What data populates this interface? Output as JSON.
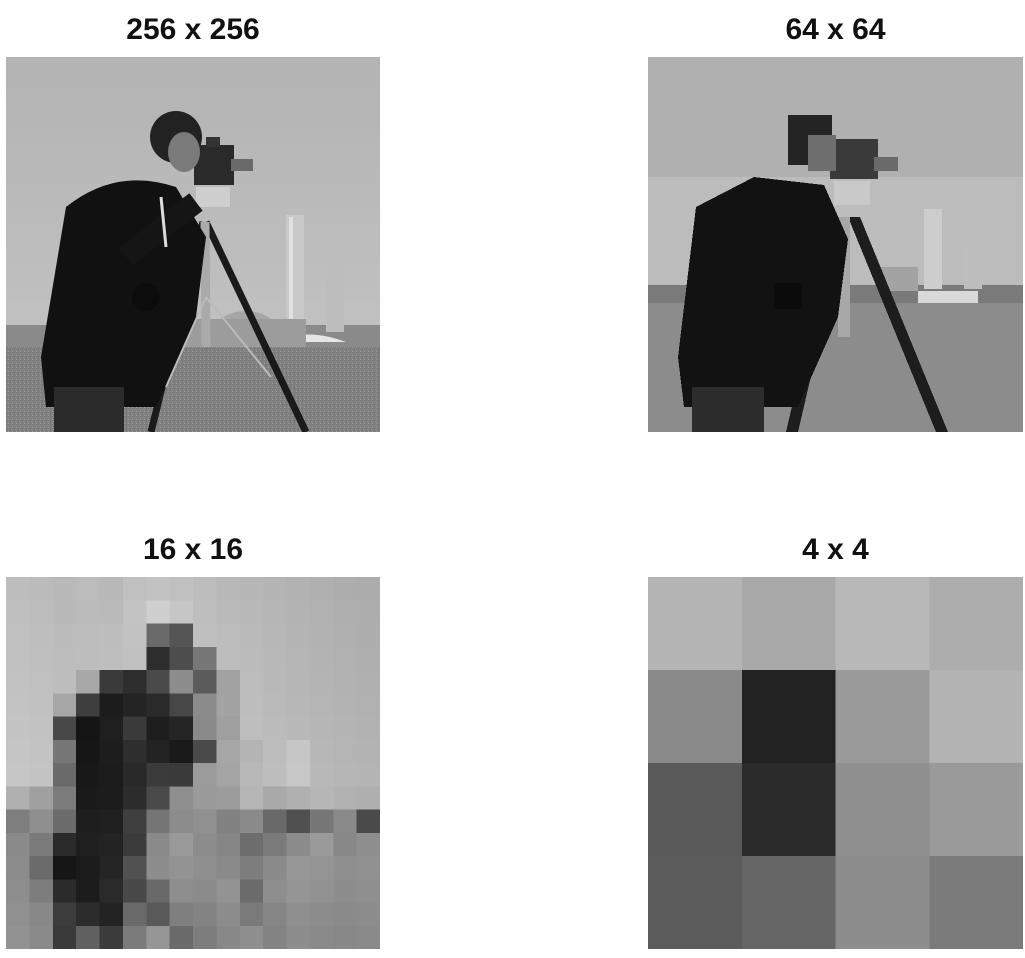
{
  "panels": [
    {
      "id": "256",
      "title": "256 x 256",
      "resolution": 256
    },
    {
      "id": "64",
      "title": "64 x 64",
      "resolution": 64
    },
    {
      "id": "16",
      "title": "16 x 16",
      "resolution": 16
    },
    {
      "id": "4",
      "title": "4 x 4",
      "resolution": 4
    }
  ],
  "image_subject": "cameraman",
  "grid_4x4": [
    [
      "#b4b4b4",
      "#a9a9a9",
      "#b8b8b8",
      "#adadad"
    ],
    [
      "#8a8a8a",
      "#222222",
      "#9a9a9a",
      "#b3b3b3"
    ],
    [
      "#595959",
      "#2b2b2b",
      "#8f8f8f",
      "#9a9a9a"
    ],
    [
      "#5c5c5c",
      "#666666",
      "#8d8d8d",
      "#7a7a7a"
    ]
  ],
  "grid_16x16": [
    [
      "#bdbdbd",
      "#bbbbbb",
      "#b9b9b9",
      "#bcbcbc",
      "#b8b8b8",
      "#c0c0c0",
      "#c2c2c2",
      "#c0c0c0",
      "#bcbcbc",
      "#b8b8b8",
      "#b6b6b6",
      "#b4b4b4",
      "#b2b2b2",
      "#b0b0b0",
      "#aeaeae",
      "#acacac"
    ],
    [
      "#bfbfbf",
      "#bcbcbc",
      "#b9b9b9",
      "#bbbbbb",
      "#bababa",
      "#c3c3c3",
      "#cfcfcf",
      "#c6c6c6",
      "#bebebe",
      "#bababa",
      "#b8b8b8",
      "#b5b5b5",
      "#b3b3b3",
      "#b1b1b1",
      "#afafaf",
      "#adadad"
    ],
    [
      "#c0c0c0",
      "#bebebe",
      "#bbbbbb",
      "#bcbcbc",
      "#bdbdbd",
      "#c2c2c2",
      "#6a6a6a",
      "#555555",
      "#bfbfbf",
      "#bcbcbc",
      "#bababa",
      "#b7b7b7",
      "#b4b4b4",
      "#b2b2b2",
      "#b0b0b0",
      "#aeaeae"
    ],
    [
      "#c1c1c1",
      "#bfbfbf",
      "#bcbcbc",
      "#bdbdbd",
      "#bebebe",
      "#c0c0c0",
      "#2d2d2d",
      "#4d4d4d",
      "#777777",
      "#bdbdbd",
      "#bbbbbb",
      "#b8b8b8",
      "#b5b5b5",
      "#b3b3b3",
      "#b1b1b1",
      "#afafaf"
    ],
    [
      "#c2c2c2",
      "#c0c0c0",
      "#bdbdbd",
      "#a8a8a8",
      "#3a3a3a",
      "#2e2e2e",
      "#4a4a4a",
      "#8d8d8d",
      "#5b5b5b",
      "#a2a2a2",
      "#bcbcbc",
      "#b9b9b9",
      "#b6b6b6",
      "#b4b4b4",
      "#b2b2b2",
      "#b0b0b0"
    ],
    [
      "#c3c3c3",
      "#c1c1c1",
      "#a6a6a6",
      "#3e3e3e",
      "#1c1c1c",
      "#242424",
      "#2a2a2a",
      "#474747",
      "#8b8b8b",
      "#a3a3a3",
      "#bdbdbd",
      "#bababa",
      "#b7b7b7",
      "#b5b5b5",
      "#b3b3b3",
      "#b1b1b1"
    ],
    [
      "#c4c4c4",
      "#c2c2c2",
      "#484848",
      "#151515",
      "#1f1f1f",
      "#3a3a3a",
      "#1e1e1e",
      "#252525",
      "#8a8a8a",
      "#9f9f9f",
      "#bebebe",
      "#bbbbbb",
      "#b8b8b8",
      "#b6b6b6",
      "#b4b4b4",
      "#b2b2b2"
    ],
    [
      "#c5c5c5",
      "#c3c3c3",
      "#777777",
      "#161616",
      "#1d1d1d",
      "#2e2e2e",
      "#232323",
      "#1a1a1a",
      "#4a4a4a",
      "#a7a7a7",
      "#b4b4b4",
      "#bcbcbc",
      "#c6c6c6",
      "#b7b7b7",
      "#b5b5b5",
      "#b3b3b3"
    ],
    [
      "#c6c6c6",
      "#c4c4c4",
      "#6a6a6a",
      "#181818",
      "#1b1b1b",
      "#292929",
      "#3b3b3b",
      "#3a3a3a",
      "#9b9b9b",
      "#a5a5a5",
      "#b8b8b8",
      "#bdbdbd",
      "#c7c7c7",
      "#b8b8b8",
      "#b6b6b6",
      "#b4b4b4"
    ],
    [
      "#b0b0b0",
      "#a0a0a0",
      "#7c7c7c",
      "#1a1a1a",
      "#1c1c1c",
      "#2c2c2c",
      "#4a4a4a",
      "#8f8f8f",
      "#9a9a9a",
      "#9c9c9c",
      "#b5b5b5",
      "#a9a9a9",
      "#b0b0b0",
      "#b6b6b6",
      "#b1b1b1",
      "#afafaf"
    ],
    [
      "#7e7e7e",
      "#8f8f8f",
      "#6c6c6c",
      "#1e1e1e",
      "#202020",
      "#3f3f3f",
      "#757575",
      "#8c8c8c",
      "#909090",
      "#828282",
      "#8a8a8a",
      "#696969",
      "#505050",
      "#777777",
      "#8a8a8a",
      "#4a4a4a"
    ],
    [
      "#8a8a8a",
      "#7a7a7a",
      "#2a2a2a",
      "#1f1f1f",
      "#232323",
      "#3b3b3b",
      "#8a8a8a",
      "#9a9a9a",
      "#8c8c8c",
      "#868686",
      "#6d6d6d",
      "#7a7a7a",
      "#8b8b8b",
      "#9a9a9a",
      "#888888",
      "#8e8e8e"
    ],
    [
      "#8c8c8c",
      "#6b6b6b",
      "#161616",
      "#1b1b1b",
      "#252525",
      "#515151",
      "#8d8d8d",
      "#939393",
      "#8f8f8f",
      "#8a8a8a",
      "#7d7d7d",
      "#8a8a8a",
      "#979797",
      "#949494",
      "#8f8f8f",
      "#919191"
    ],
    [
      "#8e8e8e",
      "#7d7d7d",
      "#2b2b2b",
      "#1c1c1c",
      "#2a2a2a",
      "#484848",
      "#696969",
      "#8e8e8e",
      "#8b8b8b",
      "#939393",
      "#6b6b6b",
      "#8e8e8e",
      "#959595",
      "#929292",
      "#8d8d8d",
      "#8f8f8f"
    ],
    [
      "#909090",
      "#888888",
      "#3c3c3c",
      "#2c2c2c",
      "#232323",
      "#6a6a6a",
      "#595959",
      "#7f7f7f",
      "#838383",
      "#8c8c8c",
      "#7a7a7a",
      "#858585",
      "#8f8f8f",
      "#8c8c8c",
      "#8a8a8a",
      "#8c8c8c"
    ],
    [
      "#929292",
      "#8a8a8a",
      "#3a3a3a",
      "#606060",
      "#3b3b3b",
      "#7b7b7b",
      "#969696",
      "#6a6a6a",
      "#7d7d7d",
      "#888888",
      "#8e8e8e",
      "#838383",
      "#8d8d8d",
      "#8a8a8a",
      "#888888",
      "#8a8a8a"
    ]
  ]
}
